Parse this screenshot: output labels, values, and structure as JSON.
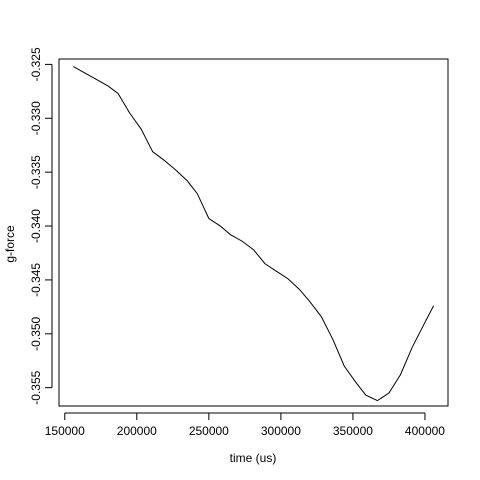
{
  "chart_data": {
    "type": "line",
    "title": "",
    "xlabel": "time (us)",
    "ylabel": "g-force",
    "xlim": [
      146000,
      416000
    ],
    "ylim": [
      -0.3567,
      -0.3245
    ],
    "xticks": [
      150000,
      200000,
      250000,
      300000,
      350000,
      400000
    ],
    "xtick_labels": [
      "150000",
      "200000",
      "250000",
      "300000",
      "350000",
      "400000"
    ],
    "yticks": [
      -0.325,
      -0.33,
      -0.335,
      -0.34,
      -0.345,
      -0.35,
      -0.355
    ],
    "ytick_labels": [
      "-0.325",
      "-0.330",
      "-0.335",
      "-0.340",
      "-0.345",
      "-0.350",
      "-0.355"
    ],
    "grid": false,
    "legend": "none",
    "series": [
      {
        "name": "g-force",
        "color": "#000000",
        "x": [
          156000,
          164000,
          172000,
          180000,
          187000,
          195000,
          203000,
          211000,
          219000,
          227000,
          235000,
          242000,
          250000,
          258000,
          265000,
          273000,
          281000,
          289000,
          297000,
          305000,
          313000,
          320000,
          328000,
          336000,
          344000,
          352000,
          359000,
          367000,
          375000,
          383000,
          391000,
          399000,
          406000
        ],
        "y": [
          -0.3252,
          -0.3258,
          -0.3264,
          -0.327,
          -0.3277,
          -0.3295,
          -0.331,
          -0.3331,
          -0.3339,
          -0.3348,
          -0.3358,
          -0.337,
          -0.3393,
          -0.34,
          -0.3408,
          -0.3414,
          -0.3422,
          -0.3435,
          -0.3442,
          -0.3449,
          -0.3459,
          -0.347,
          -0.3484,
          -0.3505,
          -0.353,
          -0.3545,
          -0.3557,
          -0.3562,
          -0.3555,
          -0.3538,
          -0.3513,
          -0.3492,
          -0.3474
        ]
      }
    ]
  }
}
